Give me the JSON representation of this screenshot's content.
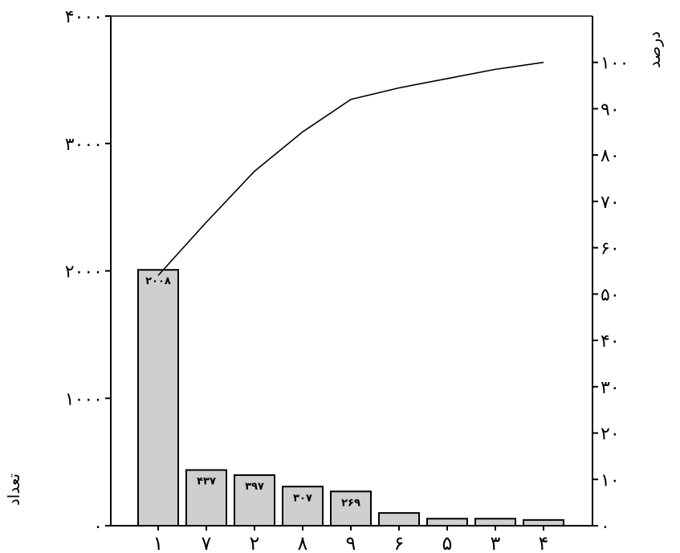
{
  "chart_data": {
    "type": "bar",
    "categories": [
      "۱",
      "۷",
      "۲",
      "۸",
      "۹",
      "۶",
      "۵",
      "۳",
      "۴"
    ],
    "values": [
      2008,
      437,
      397,
      307,
      269,
      100,
      55,
      55,
      45
    ],
    "value_labels": [
      "۲۰۰۸",
      "۴۳۷",
      "۳۹۷",
      "۳۰۷",
      "۲۶۹",
      "",
      "",
      "",
      ""
    ],
    "ylabel": "تعداد",
    "ylim": [
      0,
      4000
    ],
    "yticks": [
      0,
      1000,
      2000,
      3000,
      4000
    ],
    "ytick_labels": [
      "۰",
      "۱۰۰۰",
      "۲۰۰۰",
      "۳۰۰۰",
      "۴۰۰۰"
    ],
    "y2label": "درصد",
    "y2lim": [
      0,
      110
    ],
    "y2ticks": [
      0,
      10,
      20,
      30,
      40,
      50,
      60,
      70,
      80,
      90,
      100
    ],
    "y2tick_labels": [
      "۰",
      "۱۰",
      "۲۰",
      "۳۰",
      "۴۰",
      "۵۰",
      "۶۰",
      "۷۰",
      "۸۰",
      "۹۰",
      "۱۰۰"
    ],
    "cumulative_percent": [
      54,
      65.5,
      76.5,
      85,
      92,
      94.5,
      96.5,
      98.5,
      100
    ],
    "grid": false,
    "bar_color": "#cfcfcf",
    "line_color": "#000000"
  }
}
